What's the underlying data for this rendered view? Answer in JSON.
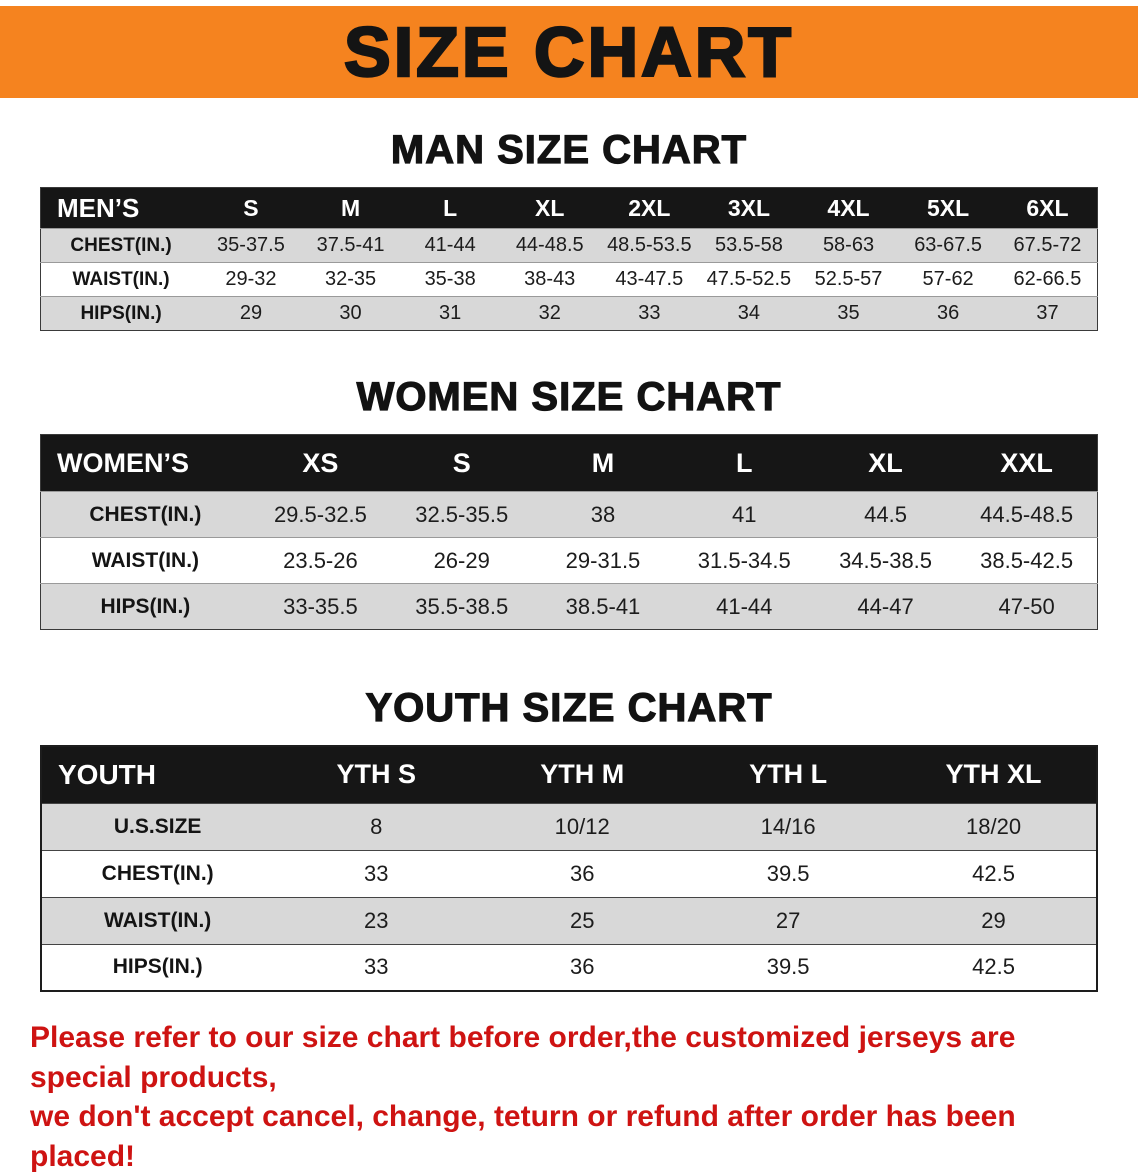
{
  "banner": {
    "title": "SIZE CHART"
  },
  "sections": [
    {
      "heading": "MAN SIZE CHART",
      "table": {
        "header": [
          "MEN’S",
          "S",
          "M",
          "L",
          "XL",
          "2XL",
          "3XL",
          "4XL",
          "5XL",
          "6XL"
        ],
        "rows": [
          [
            "CHEST(IN.)",
            "35-37.5",
            "37.5-41",
            "41-44",
            "44-48.5",
            "48.5-53.5",
            "53.5-58",
            "58-63",
            "63-67.5",
            "67.5-72"
          ],
          [
            "WAIST(IN.)",
            "29-32",
            "32-35",
            "35-38",
            "38-43",
            "43-47.5",
            "47.5-52.5",
            "52.5-57",
            "57-62",
            "62-66.5"
          ],
          [
            "HIPS(IN.)",
            "29",
            "30",
            "31",
            "32",
            "33",
            "34",
            "35",
            "36",
            "37"
          ]
        ]
      }
    },
    {
      "heading": "WOMEN SIZE CHART",
      "table": {
        "header": [
          "WOMEN’S",
          "XS",
          "S",
          "M",
          "L",
          "XL",
          "XXL"
        ],
        "rows": [
          [
            "CHEST(IN.)",
            "29.5-32.5",
            "32.5-35.5",
            "38",
            "41",
            "44.5",
            "44.5-48.5"
          ],
          [
            "WAIST(IN.)",
            "23.5-26",
            "26-29",
            "29-31.5",
            "31.5-34.5",
            "34.5-38.5",
            "38.5-42.5"
          ],
          [
            "HIPS(IN.)",
            "33-35.5",
            "35.5-38.5",
            "38.5-41",
            "41-44",
            "44-47",
            "47-50"
          ]
        ]
      }
    },
    {
      "heading": "YOUTH SIZE CHART",
      "table": {
        "header": [
          "YOUTH",
          "YTH S",
          "YTH M",
          "YTH L",
          "YTH XL"
        ],
        "rows": [
          [
            "U.S.SIZE",
            "8",
            "10/12",
            "14/16",
            "18/20"
          ],
          [
            "CHEST(IN.)",
            "33",
            "36",
            "39.5",
            "42.5"
          ],
          [
            "WAIST(IN.)",
            "23",
            "25",
            "27",
            "29"
          ],
          [
            "HIPS(IN.)",
            "33",
            "36",
            "39.5",
            "42.5"
          ]
        ]
      }
    }
  ],
  "notice": {
    "line1": "Please refer to our size chart before order,the customized jerseys are special products,",
    "line2": "we don't accept cancel, change, teturn or refund after order has been placed!"
  },
  "colors": {
    "banner_bg": "#F5831F",
    "header_bg": "#161616",
    "stripe_bg": "#D8D8D8",
    "notice_red": "#CE1312"
  }
}
